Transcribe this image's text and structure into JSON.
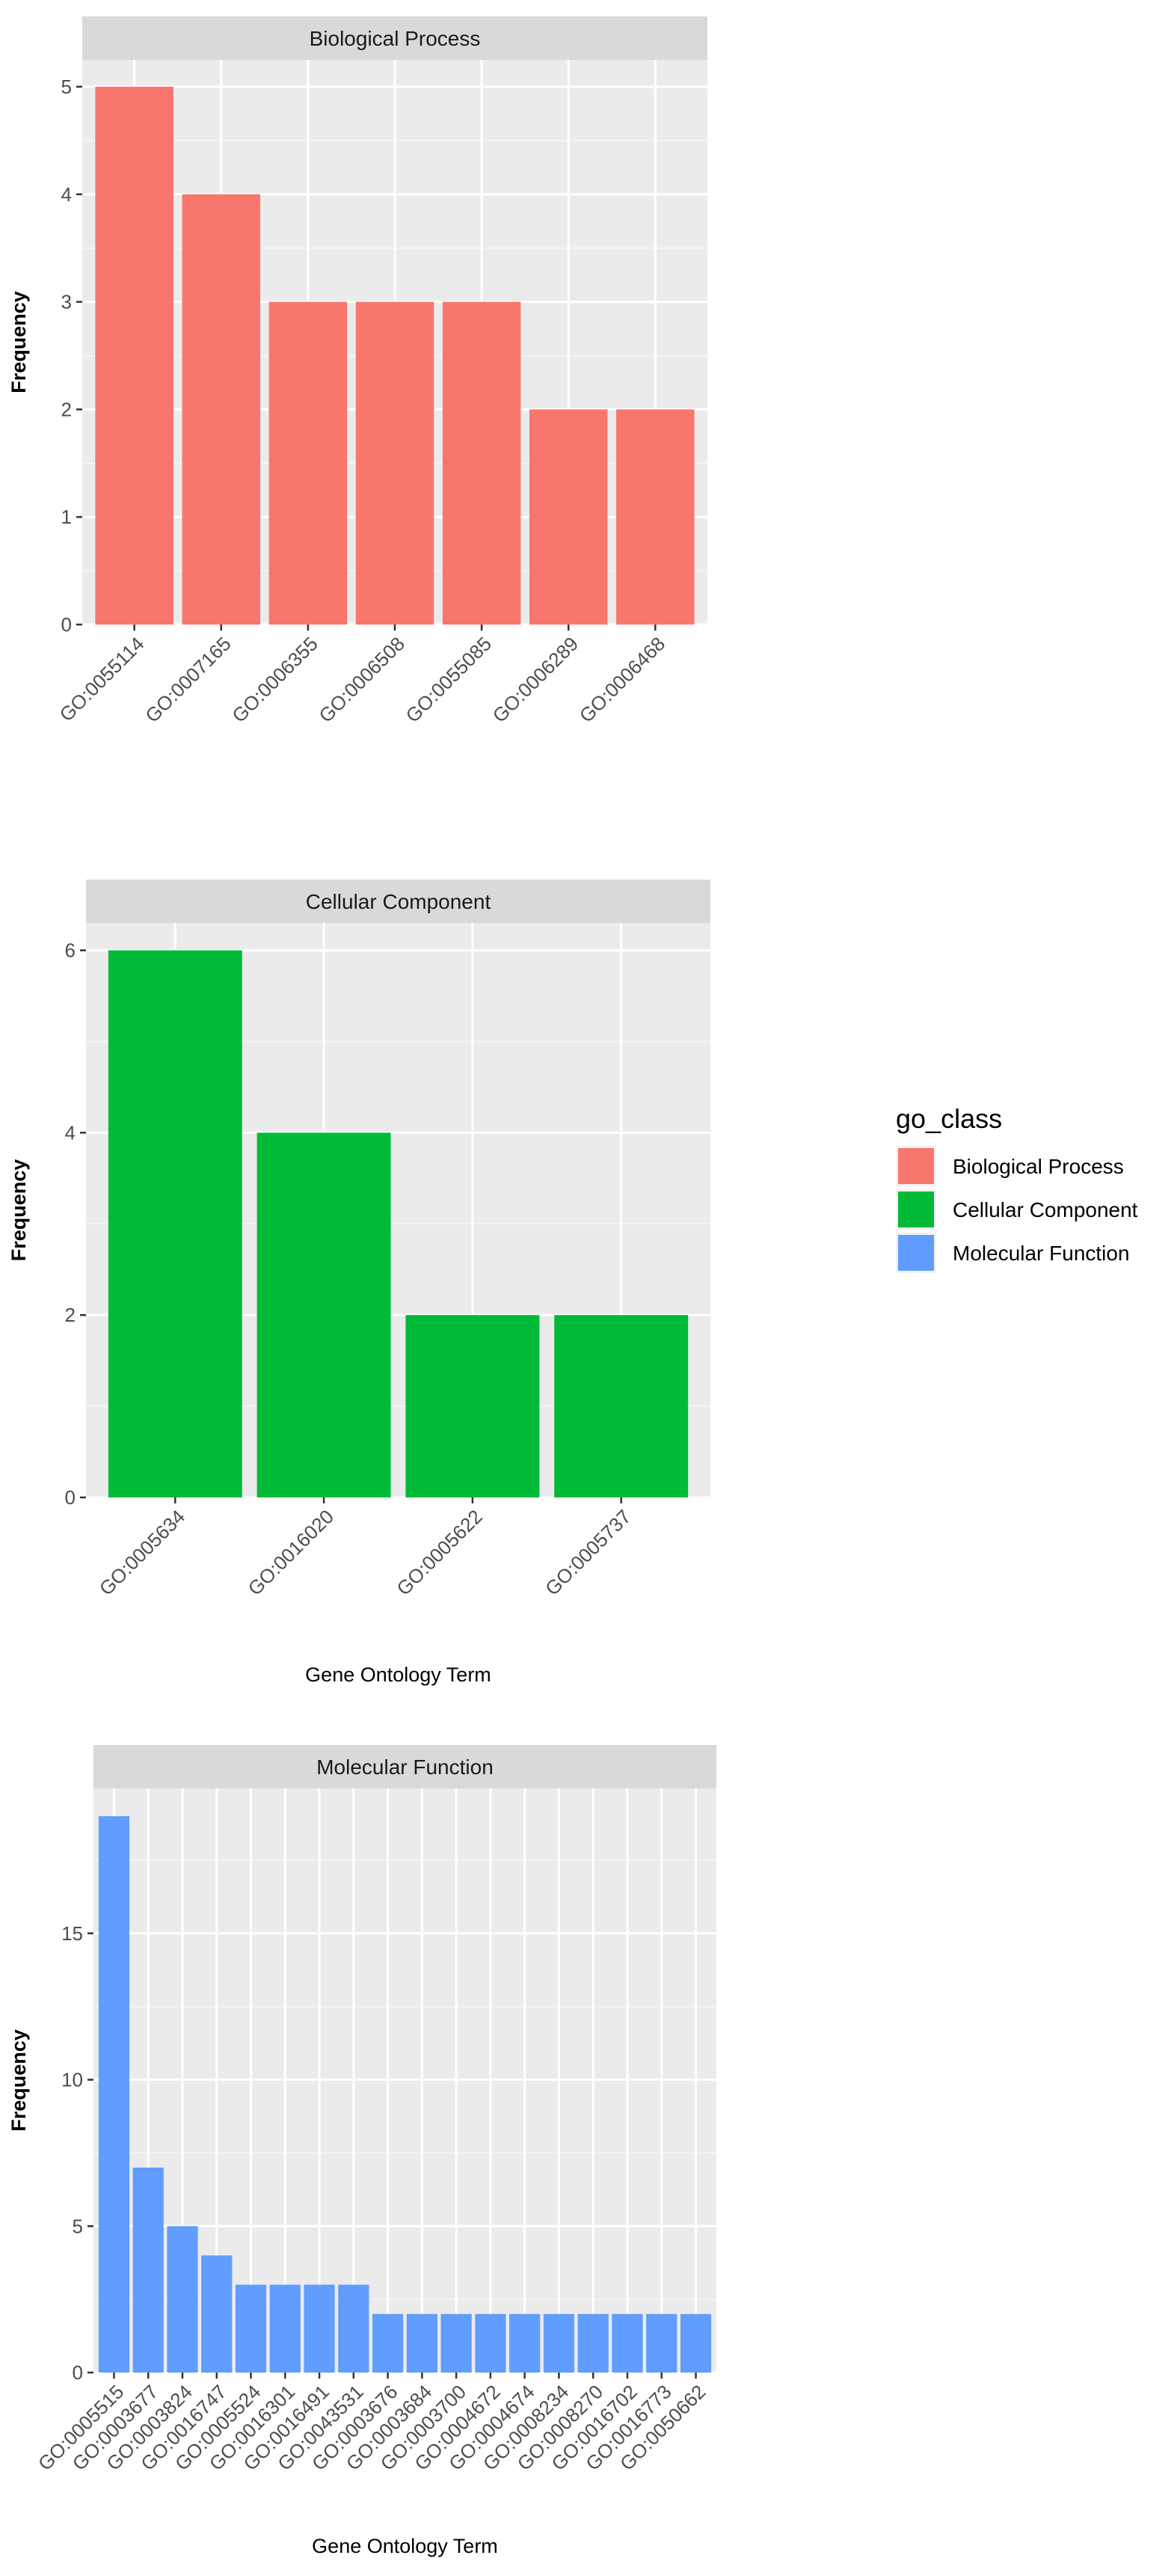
{
  "legend": {
    "title": "go_class",
    "placement": "right",
    "entries": [
      {
        "label": "Biological Process",
        "color": "#F8766D"
      },
      {
        "label": "Cellular Component",
        "color": "#00BA38"
      },
      {
        "label": "Molecular Function",
        "color": "#619CFF"
      }
    ]
  },
  "chart_data": [
    {
      "type": "bar",
      "title": "Biological Process",
      "xlabel": "",
      "ylabel": "Frequency",
      "ylim": [
        0,
        5.25
      ],
      "yticks": [
        0,
        1,
        2,
        3,
        4,
        5
      ],
      "grid": true,
      "color": "#F8766D",
      "categories": [
        "GO:0055114",
        "GO:0007165",
        "GO:0006355",
        "GO:0006508",
        "GO:0055085",
        "GO:0006289",
        "GO:0006468"
      ],
      "values": [
        5,
        4,
        3,
        3,
        3,
        2,
        2
      ]
    },
    {
      "type": "bar",
      "title": "Cellular Component",
      "xlabel": "Gene Ontology Term",
      "ylabel": "Frequency",
      "ylim": [
        0,
        6.3
      ],
      "yticks": [
        0,
        2,
        4,
        6
      ],
      "grid": true,
      "color": "#00BA38",
      "categories": [
        "GO:0005634",
        "GO:0016020",
        "GO:0005622",
        "GO:0005737"
      ],
      "values": [
        6,
        4,
        2,
        2
      ]
    },
    {
      "type": "bar",
      "title": "Molecular Function",
      "xlabel": "Gene Ontology Term",
      "ylabel": "Frequency",
      "ylim": [
        0,
        19.95
      ],
      "yticks": [
        0,
        5,
        10,
        15
      ],
      "grid": true,
      "color": "#619CFF",
      "categories": [
        "GO:0005515",
        "GO:0003677",
        "GO:0003824",
        "GO:0016747",
        "GO:0005524",
        "GO:0016301",
        "GO:0016491",
        "GO:0043531",
        "GO:0003676",
        "GO:0003684",
        "GO:0003700",
        "GO:0004672",
        "GO:0004674",
        "GO:0008234",
        "GO:0008270",
        "GO:0016702",
        "GO:0016773",
        "GO:0050662"
      ],
      "values": [
        19,
        7,
        5,
        4,
        3,
        3,
        3,
        3,
        2,
        2,
        2,
        2,
        2,
        2,
        2,
        2,
        2,
        2
      ]
    }
  ]
}
